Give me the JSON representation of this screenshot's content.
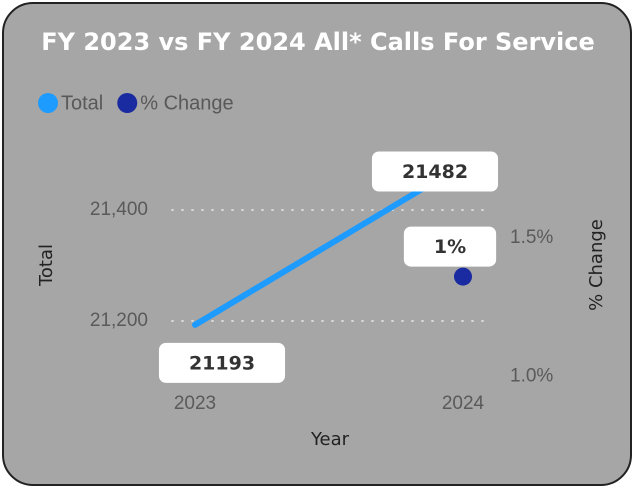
{
  "chart_data": {
    "type": "line",
    "title": "FY 2023 vs FY 2024 All* Calls For Service",
    "categories": [
      "2023",
      "2024"
    ],
    "series": [
      {
        "name": "Total",
        "color": "#1e9bff",
        "values": [
          21193,
          21482
        ]
      },
      {
        "name": "% Change",
        "color": "#1a2aa0",
        "axis": "y2",
        "values": [
          null,
          1.36
        ],
        "value_labels": [
          null,
          "1%"
        ]
      }
    ],
    "xlabel": "Year",
    "ylabel": "Total",
    "y2label": "% Change",
    "ylim": [
      21100,
      21500
    ],
    "yticks": [
      {
        "value": 21200,
        "label": "21,200"
      },
      {
        "value": 21400,
        "label": "21,400"
      }
    ],
    "y2lim": [
      1.0,
      1.8
    ],
    "y2ticks": [
      {
        "value": 1.0,
        "label": "1.0%"
      },
      {
        "value": 1.5,
        "label": "1.5%"
      }
    ],
    "grid": true,
    "legend": "top-left"
  }
}
